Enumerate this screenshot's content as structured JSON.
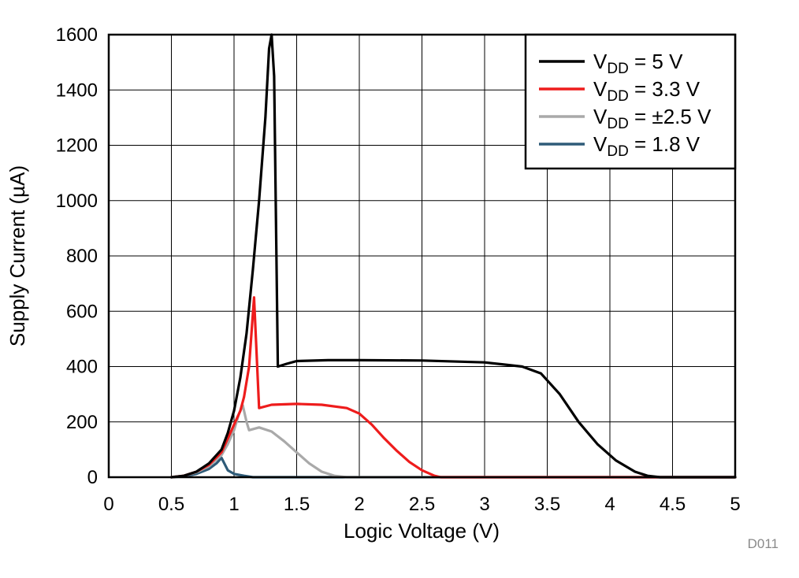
{
  "chart_data": {
    "type": "line",
    "xlabel": "Logic Voltage (V)",
    "ylabel": "Supply Current (µA)",
    "xlim": [
      0,
      5
    ],
    "ylim": [
      0,
      1600
    ],
    "x_ticks": [
      0,
      0.5,
      1,
      1.5,
      2,
      2.5,
      3,
      3.5,
      4,
      4.5,
      5
    ],
    "x_tick_labels": [
      "0",
      "0.5",
      "1",
      "1.5",
      "2",
      "2.5",
      "3",
      "3.5",
      "4",
      "4.5",
      "5"
    ],
    "y_ticks": [
      0,
      200,
      400,
      600,
      800,
      1000,
      1200,
      1400,
      1600
    ],
    "y_tick_labels": [
      "0",
      "200",
      "400",
      "600",
      "800",
      "1000",
      "1200",
      "1400",
      "1600"
    ],
    "grid": true,
    "legend_position": "top-right",
    "footnote": "D011",
    "series": [
      {
        "name": "VDD = 5 V",
        "legend": {
          "main": "V",
          "sub": "DD",
          "rest": " = 5 V"
        },
        "color": "#000000",
        "points": [
          [
            0.5,
            0
          ],
          [
            0.6,
            5
          ],
          [
            0.7,
            20
          ],
          [
            0.8,
            50
          ],
          [
            0.9,
            100
          ],
          [
            0.95,
            160
          ],
          [
            1.0,
            240
          ],
          [
            1.05,
            360
          ],
          [
            1.1,
            520
          ],
          [
            1.15,
            750
          ],
          [
            1.2,
            1000
          ],
          [
            1.25,
            1300
          ],
          [
            1.28,
            1550
          ],
          [
            1.3,
            1600
          ],
          [
            1.32,
            1450
          ],
          [
            1.35,
            400
          ],
          [
            1.42,
            410
          ],
          [
            1.5,
            420
          ],
          [
            1.75,
            423
          ],
          [
            2.0,
            423
          ],
          [
            2.5,
            422
          ],
          [
            3.0,
            415
          ],
          [
            3.3,
            400
          ],
          [
            3.45,
            375
          ],
          [
            3.6,
            300
          ],
          [
            3.75,
            200
          ],
          [
            3.9,
            120
          ],
          [
            4.05,
            60
          ],
          [
            4.2,
            20
          ],
          [
            4.3,
            5
          ],
          [
            4.4,
            0
          ],
          [
            5.0,
            0
          ]
        ]
      },
      {
        "name": "VDD = 3.3 V",
        "legend": {
          "main": "V",
          "sub": "DD",
          "rest": " = 3.3 V"
        },
        "color": "#ee1c1c",
        "points": [
          [
            0.5,
            0
          ],
          [
            0.6,
            5
          ],
          [
            0.7,
            20
          ],
          [
            0.8,
            45
          ],
          [
            0.9,
            90
          ],
          [
            0.95,
            140
          ],
          [
            1.0,
            190
          ],
          [
            1.05,
            240
          ],
          [
            1.08,
            290
          ],
          [
            1.12,
            400
          ],
          [
            1.16,
            650
          ],
          [
            1.2,
            250
          ],
          [
            1.3,
            262
          ],
          [
            1.5,
            265
          ],
          [
            1.7,
            262
          ],
          [
            1.9,
            250
          ],
          [
            2.0,
            230
          ],
          [
            2.1,
            190
          ],
          [
            2.2,
            140
          ],
          [
            2.3,
            95
          ],
          [
            2.4,
            55
          ],
          [
            2.5,
            25
          ],
          [
            2.6,
            5
          ],
          [
            2.65,
            0
          ],
          [
            5.0,
            0
          ]
        ]
      },
      {
        "name": "VDD = ±2.5 V",
        "legend": {
          "main": "V",
          "sub": "DD",
          "rest": " = ±2.5 V"
        },
        "color": "#a9a9a9",
        "points": [
          [
            0.5,
            0
          ],
          [
            0.6,
            5
          ],
          [
            0.7,
            18
          ],
          [
            0.8,
            40
          ],
          [
            0.9,
            80
          ],
          [
            0.95,
            120
          ],
          [
            1.0,
            170
          ],
          [
            1.04,
            230
          ],
          [
            1.07,
            260
          ],
          [
            1.1,
            200
          ],
          [
            1.12,
            170
          ],
          [
            1.2,
            180
          ],
          [
            1.3,
            165
          ],
          [
            1.4,
            130
          ],
          [
            1.5,
            90
          ],
          [
            1.6,
            50
          ],
          [
            1.7,
            20
          ],
          [
            1.8,
            5
          ],
          [
            1.9,
            0
          ],
          [
            5.0,
            0
          ]
        ]
      },
      {
        "name": "VDD = 1.8 V",
        "legend": {
          "main": "V",
          "sub": "DD",
          "rest": " = 1.8 V"
        },
        "color": "#2e5b78",
        "points": [
          [
            0.5,
            0
          ],
          [
            0.6,
            3
          ],
          [
            0.7,
            12
          ],
          [
            0.8,
            30
          ],
          [
            0.86,
            50
          ],
          [
            0.9,
            70
          ],
          [
            0.95,
            25
          ],
          [
            1.0,
            12
          ],
          [
            1.08,
            5
          ],
          [
            1.15,
            0
          ],
          [
            5.0,
            0
          ]
        ]
      }
    ]
  }
}
